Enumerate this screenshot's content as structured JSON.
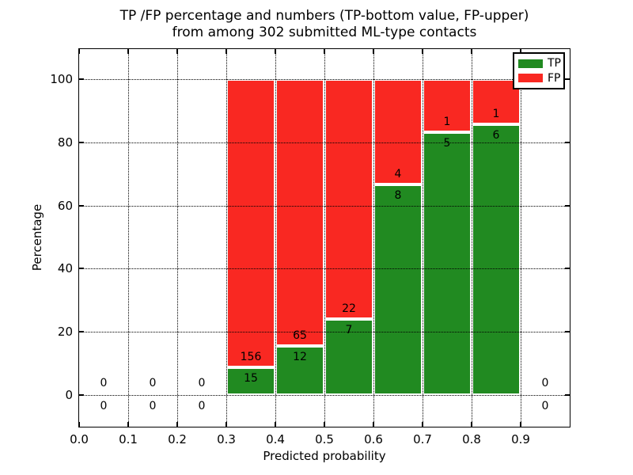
{
  "title": {
    "line1": "TP /FP percentage and numbers (TP-bottom value, FP-upper)",
    "line2": "from among 302 submitted ML-type contacts"
  },
  "axes": {
    "xlabel": "Predicted probability",
    "ylabel": "Percentage",
    "xtick_labels": [
      "0.0",
      "0.1",
      "0.2",
      "0.3",
      "0.4",
      "0.5",
      "0.6",
      "0.7",
      "0.8",
      "0.9"
    ],
    "xtick_values": [
      0.0,
      0.1,
      0.2,
      0.3,
      0.4,
      0.5,
      0.6,
      0.7,
      0.8,
      0.9
    ],
    "ytick_labels": [
      "0",
      "20",
      "40",
      "60",
      "80",
      "100"
    ],
    "ytick_values": [
      0,
      20,
      40,
      60,
      80,
      100
    ]
  },
  "legend": {
    "items": [
      {
        "label": "TP",
        "color": "#218a21"
      },
      {
        "label": "FP",
        "color": "#f92822"
      }
    ]
  },
  "chart_data": {
    "type": "bar",
    "stacked": true,
    "title": "TP /FP percentage and numbers (TP-bottom value, FP-upper) from among 302 submitted ML-type contacts",
    "xlabel": "Predicted probability",
    "ylabel": "Percentage",
    "total_contacts": 302,
    "bin_edges": [
      0.0,
      0.1,
      0.2,
      0.3,
      0.4,
      0.5,
      0.6,
      0.7,
      0.8,
      0.9,
      1.0
    ],
    "series": [
      {
        "name": "TP",
        "color": "#218a21",
        "counts": [
          0,
          0,
          0,
          15,
          12,
          7,
          8,
          5,
          6,
          0
        ],
        "percent": [
          0,
          0,
          0,
          8.77,
          15.58,
          24.14,
          66.67,
          83.33,
          85.71,
          0
        ]
      },
      {
        "name": "FP",
        "color": "#f92822",
        "counts": [
          0,
          0,
          0,
          156,
          65,
          22,
          4,
          1,
          1,
          0
        ],
        "percent": [
          0,
          0,
          0,
          91.23,
          84.42,
          75.86,
          33.33,
          16.67,
          14.29,
          0
        ]
      }
    ],
    "bar_labels_note": "upper number = FP count, lower number = TP count",
    "xlim": [
      0.0,
      1.0
    ],
    "ylim": [
      -10,
      110
    ],
    "grid": true,
    "grid_style": "dotted",
    "grid_above_bars": true,
    "bar_edge_color": "#ffffff",
    "legend_position": "upper right"
  }
}
